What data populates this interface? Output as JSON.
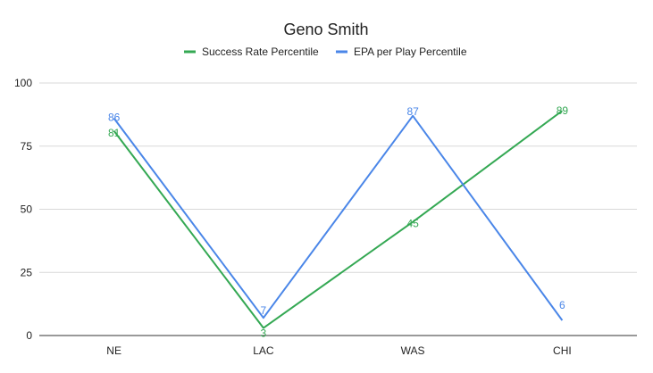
{
  "chart_data": {
    "type": "line",
    "title": "Geno Smith",
    "categories": [
      "NE",
      "LAC",
      "WAS",
      "CHI"
    ],
    "series": [
      {
        "name": "Success Rate Percentile",
        "color": "#34a853",
        "values": [
          81,
          3,
          45,
          89
        ]
      },
      {
        "name": "EPA per Play Percentile",
        "color": "#4a86e8",
        "values": [
          86,
          7,
          87,
          6
        ]
      }
    ],
    "ylim": [
      0,
      100
    ],
    "yticks": [
      "0",
      "25",
      "50",
      "75",
      "100"
    ],
    "xlabel": "",
    "ylabel": "",
    "legend": "top",
    "grid": true
  }
}
